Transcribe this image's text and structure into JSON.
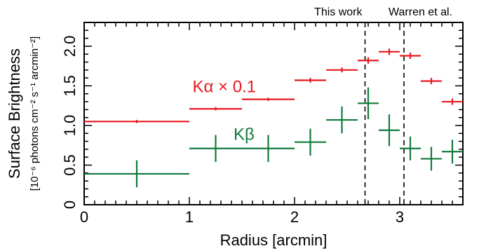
{
  "chart_data": {
    "type": "scatter",
    "title": "",
    "xlabel": "Radius [arcmin]",
    "ylabel": "Surface Brightness",
    "ylabel_units": "[10⁻⁶ photons cm⁻² s⁻¹ arcmin⁻²]",
    "xlim": [
      0,
      3.6
    ],
    "ylim": [
      0,
      2.3
    ],
    "x_ticks": [
      0,
      1,
      2,
      3
    ],
    "x_tick_labels": [
      "0",
      "1",
      "2",
      "3"
    ],
    "y_ticks": [
      0,
      0.5,
      1.0,
      1.5,
      2.0
    ],
    "y_tick_labels": [
      "0",
      "0.5",
      "1.0",
      "1.5",
      "2.0"
    ],
    "x_minor_step": 0.1,
    "y_minor_step": 0.1,
    "grid": false,
    "series": [
      {
        "name": "Kα × 0.1",
        "color": "#e8191f",
        "points": [
          {
            "x": 0.5,
            "xerr": 0.5,
            "y": 1.05,
            "yerr": 0.02
          },
          {
            "x": 1.25,
            "xerr": 0.25,
            "y": 1.21,
            "yerr": 0.02
          },
          {
            "x": 1.75,
            "xerr": 0.25,
            "y": 1.33,
            "yerr": 0.02
          },
          {
            "x": 2.15,
            "xerr": 0.15,
            "y": 1.57,
            "yerr": 0.03
          },
          {
            "x": 2.45,
            "xerr": 0.15,
            "y": 1.7,
            "yerr": 0.03
          },
          {
            "x": 2.7,
            "xerr": 0.1,
            "y": 1.82,
            "yerr": 0.04
          },
          {
            "x": 2.9,
            "xerr": 0.1,
            "y": 1.93,
            "yerr": 0.04
          },
          {
            "x": 3.1,
            "xerr": 0.1,
            "y": 1.88,
            "yerr": 0.04
          },
          {
            "x": 3.3,
            "xerr": 0.1,
            "y": 1.56,
            "yerr": 0.04
          },
          {
            "x": 3.5,
            "xerr": 0.1,
            "y": 1.3,
            "yerr": 0.04
          }
        ]
      },
      {
        "name": "Kβ",
        "color": "#117a3b",
        "points": [
          {
            "x": 0.5,
            "xerr": 0.5,
            "y": 0.39,
            "yerr": 0.17
          },
          {
            "x": 1.25,
            "xerr": 0.25,
            "y": 0.71,
            "yerr": 0.17
          },
          {
            "x": 1.75,
            "xerr": 0.25,
            "y": 0.71,
            "yerr": 0.17
          },
          {
            "x": 2.15,
            "xerr": 0.15,
            "y": 0.79,
            "yerr": 0.17
          },
          {
            "x": 2.45,
            "xerr": 0.15,
            "y": 1.07,
            "yerr": 0.17
          },
          {
            "x": 2.7,
            "xerr": 0.1,
            "y": 1.28,
            "yerr": 0.2
          },
          {
            "x": 2.9,
            "xerr": 0.1,
            "y": 0.94,
            "yerr": 0.2
          },
          {
            "x": 3.1,
            "xerr": 0.1,
            "y": 0.71,
            "yerr": 0.15
          },
          {
            "x": 3.3,
            "xerr": 0.1,
            "y": 0.58,
            "yerr": 0.15
          },
          {
            "x": 3.5,
            "xerr": 0.1,
            "y": 0.67,
            "yerr": 0.15
          }
        ]
      }
    ],
    "annotations": [
      {
        "text": "This work",
        "x": 2.67
      },
      {
        "text": "Warren et al.",
        "x": 3.04
      }
    ],
    "series_labels": [
      {
        "series": 0,
        "text": "Kα × 0.1",
        "x": 1.03,
        "y": 1.42
      },
      {
        "series": 1,
        "text": "Kβ",
        "x": 1.42,
        "y": 0.82
      }
    ]
  }
}
